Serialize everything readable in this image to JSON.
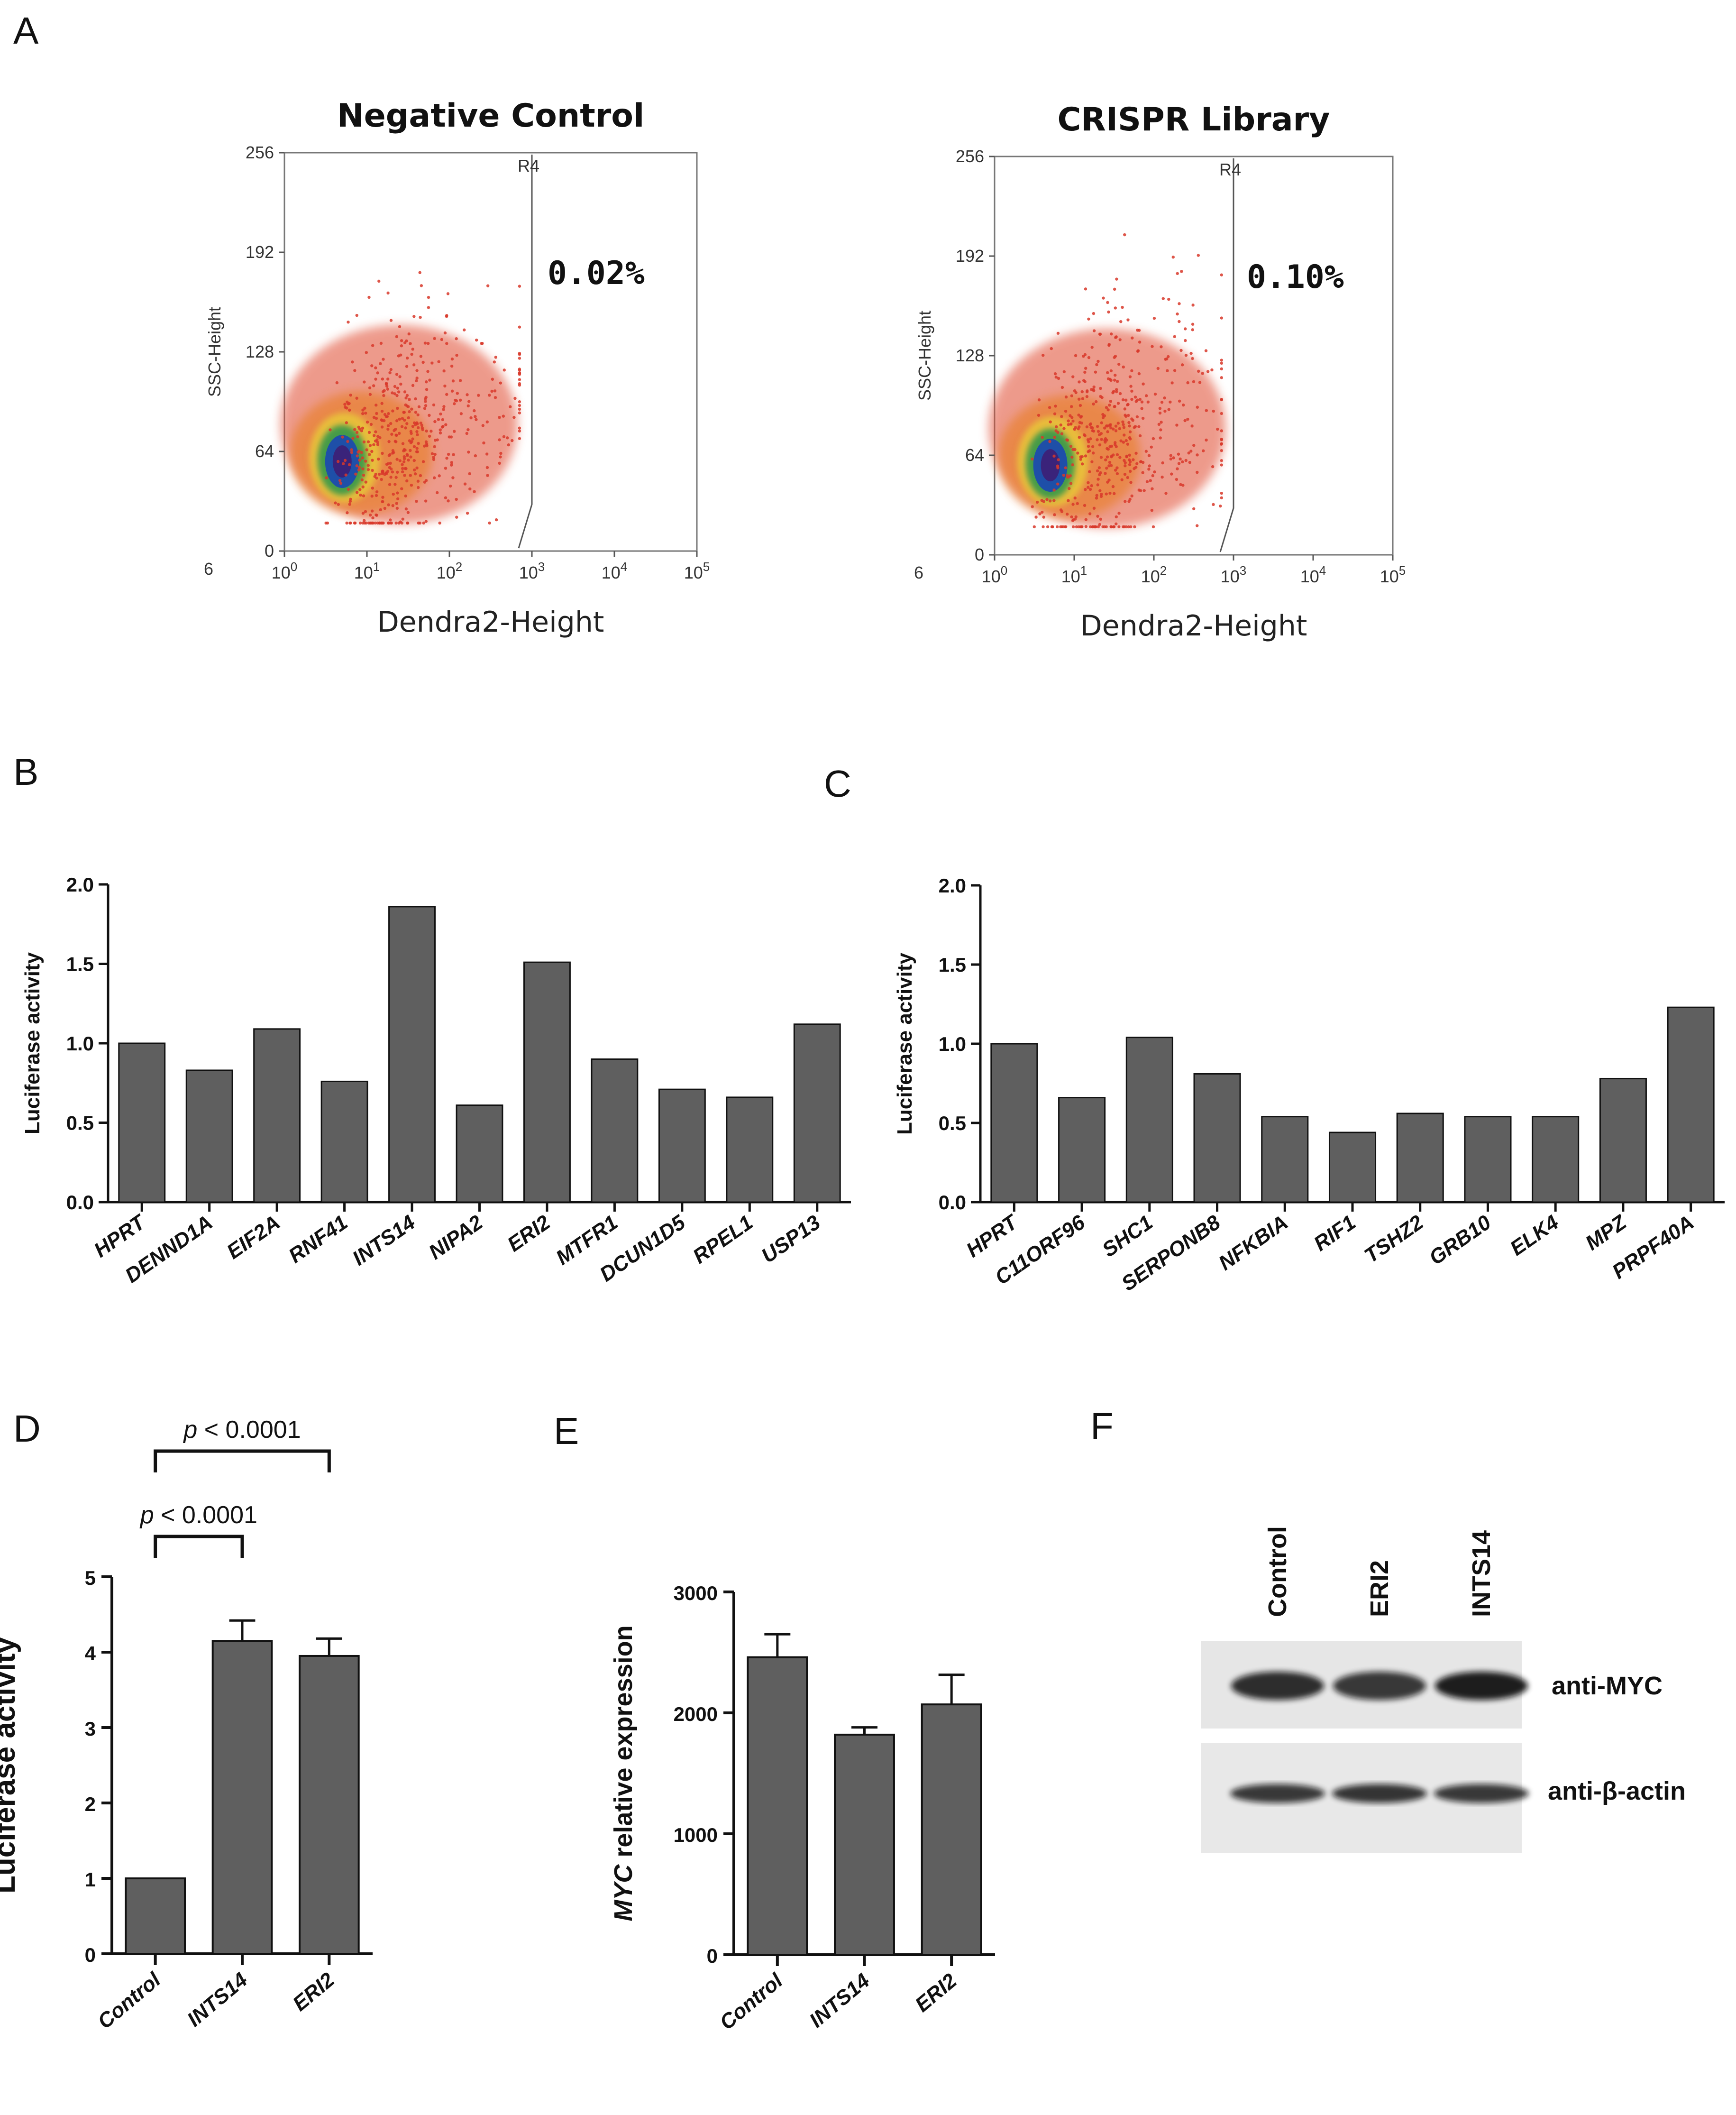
{
  "panels": {
    "A": {
      "label": "A",
      "left": {
        "title": "Negative Control",
        "percent": "0.02%"
      },
      "right": {
        "title": "CRISPR Library",
        "percent": "0.10%"
      }
    },
    "F": {
      "label": "F"
    }
  },
  "chart_data": [
    {
      "id": "A-left",
      "type": "scatter",
      "title": "Negative Control",
      "xlabel": "Dendra2-Height",
      "ylabel": "SSC-Height",
      "x_scale": "log",
      "x_ticks": [
        {
          "base": "10",
          "exp": "0"
        },
        {
          "base": "10",
          "exp": "1"
        },
        {
          "base": "10",
          "exp": "2"
        },
        {
          "base": "10",
          "exp": "3"
        },
        {
          "base": "10",
          "exp": "4"
        },
        {
          "base": "10",
          "exp": "5"
        }
      ],
      "y_ticks": [
        "0",
        "64",
        "128",
        "192",
        "256"
      ],
      "ylim": [
        0,
        256
      ],
      "corner_label": "6",
      "gate": {
        "name": "R4",
        "x_start": 1000
      },
      "annotations": [
        "0.02%"
      ]
    },
    {
      "id": "A-right",
      "type": "scatter",
      "title": "CRISPR Library",
      "xlabel": "Dendra2-Height",
      "ylabel": "SSC-Height",
      "x_scale": "log",
      "x_ticks": [
        {
          "base": "10",
          "exp": "0"
        },
        {
          "base": "10",
          "exp": "1"
        },
        {
          "base": "10",
          "exp": "2"
        },
        {
          "base": "10",
          "exp": "3"
        },
        {
          "base": "10",
          "exp": "4"
        },
        {
          "base": "10",
          "exp": "5"
        }
      ],
      "y_ticks": [
        "0",
        "64",
        "128",
        "192",
        "256"
      ],
      "ylim": [
        0,
        256
      ],
      "corner_label": "6",
      "gate": {
        "name": "R4",
        "x_start": 1000
      },
      "annotations": [
        "0.10%"
      ]
    },
    {
      "id": "B",
      "type": "bar",
      "panel_label": "B",
      "ylabel": "Luciferase activity",
      "ylim": [
        0,
        2.0
      ],
      "y_ticks": [
        "0.0",
        "0.5",
        "1.0",
        "1.5",
        "2.0"
      ],
      "categories": [
        "HPRT",
        "DENND1A",
        "EIF2A",
        "RNF41",
        "INTS14",
        "NIPA2",
        "ERI2",
        "MTFR1",
        "DCUN1D5",
        "RPEL1",
        "USP13"
      ],
      "values": [
        1.0,
        0.83,
        1.09,
        0.76,
        1.86,
        0.61,
        1.51,
        0.9,
        0.71,
        0.66,
        1.12
      ]
    },
    {
      "id": "C",
      "type": "bar",
      "panel_label": "C",
      "ylabel": "Luciferase activity",
      "ylim": [
        0,
        2.0
      ],
      "y_ticks": [
        "0.0",
        "0.5",
        "1.0",
        "1.5",
        "2.0"
      ],
      "categories": [
        "HPRT",
        "C11ORF96",
        "SHC1",
        "SERPONB8",
        "NFKBIA",
        "RIF1",
        "TSHZ2",
        "GRB10",
        "ELK4",
        "MPZ",
        "PRPF40A"
      ],
      "values": [
        1.0,
        0.66,
        1.04,
        0.81,
        0.54,
        0.44,
        0.56,
        0.54,
        0.54,
        0.78,
        1.23
      ]
    },
    {
      "id": "D",
      "type": "bar",
      "panel_label": "D",
      "ylabel": "Luciferase activity",
      "ylim": [
        0,
        5
      ],
      "y_ticks": [
        "0",
        "1",
        "2",
        "3",
        "4",
        "5"
      ],
      "categories": [
        "Control",
        "INTS14",
        "ERI2"
      ],
      "values": [
        1.0,
        4.15,
        3.95
      ],
      "errors": [
        0,
        0.27,
        0.23
      ],
      "significance": [
        {
          "from": 0,
          "to": 1,
          "p_symbol": "p",
          "text": " < 0.0001"
        },
        {
          "from": 0,
          "to": 2,
          "p_symbol": "p",
          "text": " < 0.0001"
        }
      ]
    },
    {
      "id": "E",
      "type": "bar",
      "panel_label": "E",
      "ylabel_italic": "MYC",
      "ylabel_rest": " relative expression",
      "ylim": [
        0,
        3000
      ],
      "y_ticks": [
        "0",
        "1000",
        "2000",
        "3000"
      ],
      "categories": [
        "Control",
        "INTS14",
        "ERI2"
      ],
      "values": [
        2460,
        1820,
        2070
      ],
      "errors": [
        190,
        60,
        245
      ]
    }
  ],
  "blot": {
    "lanes": [
      "Control",
      "ERI2",
      "INTS14"
    ],
    "bands": [
      "anti-MYC",
      "anti-β-actin"
    ],
    "myc_intensity": [
      0.85,
      0.8,
      0.92
    ],
    "actin_intensity": [
      0.8,
      0.82,
      0.8
    ]
  },
  "colors": {
    "bar": "#5f5f5f",
    "axis": "#111111",
    "density": [
      "#d8382a",
      "#e8802e",
      "#e8c33a",
      "#3c9a4a",
      "#1e4fa8",
      "#3a237a"
    ]
  }
}
